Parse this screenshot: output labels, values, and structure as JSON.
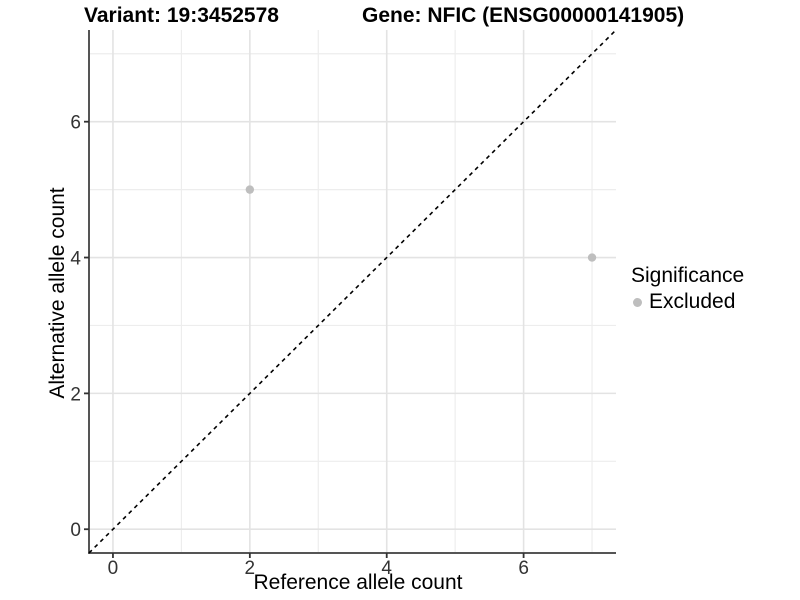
{
  "figure": {
    "title_left": "Variant: 19:3452578",
    "title_right": "Gene: NFIC (ENSG00000141905)"
  },
  "chart_data": {
    "type": "scatter",
    "titles": [
      "Variant: 19:3452578",
      "Gene: NFIC (ENSG00000141905)"
    ],
    "xlabel": "Reference allele count",
    "ylabel": "Alternative allele count",
    "xlim": [
      -0.35,
      7.35
    ],
    "ylim": [
      -0.35,
      7.35
    ],
    "xticks": [
      0,
      2,
      4,
      6
    ],
    "yticks": [
      0,
      2,
      4,
      6
    ],
    "xticks_minor": [
      1,
      3,
      5,
      7
    ],
    "yticks_minor": [
      1,
      3,
      5,
      7
    ],
    "grid": "major and minor, light gray, on white panel",
    "axis_lines": "left and bottom only",
    "series": [
      {
        "name": "Excluded",
        "marker": "circle",
        "color": "#bebebe",
        "points": [
          {
            "x": 2,
            "y": 5
          },
          {
            "x": 7,
            "y": 4
          }
        ]
      }
    ],
    "reference_line": {
      "type": "identity y=x",
      "style": "dashed",
      "color": "#000000"
    },
    "legend": {
      "title": "Significance",
      "position": "right",
      "entries": [
        {
          "label": "Excluded",
          "color": "#bebebe"
        }
      ]
    }
  },
  "style": {
    "background": "#ffffff",
    "axis_line_color": "#555555",
    "tick_mark_color": "#333333",
    "tick_label_color": "#333333",
    "grid_major_color": "#e3e3e3",
    "grid_minor_color": "#ededed",
    "point_color": "#bebebe",
    "point_radius": 4.2
  }
}
